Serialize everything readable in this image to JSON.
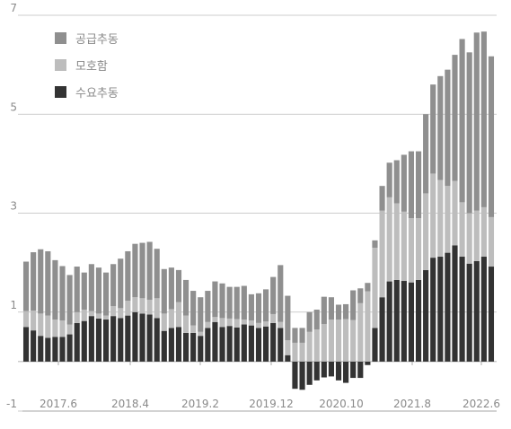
{
  "chart_data": {
    "type": "bar",
    "stacked": true,
    "title": "",
    "xlabel": "",
    "ylabel": "",
    "ylim": [
      -1,
      7
    ],
    "y_ticks": [
      "7",
      "5",
      "3",
      "1",
      "-1"
    ],
    "x_tick_labels": [
      "2017.6",
      "2018.4",
      "2019.2",
      "2019.12",
      "2020.10",
      "2021.8",
      "2022.6"
    ],
    "grid": "horizontal",
    "legend_position": "top-left",
    "series": [
      {
        "name": "수요추동",
        "color": "#333333",
        "values": [
          0.7,
          0.63,
          0.52,
          0.48,
          0.5,
          0.5,
          0.55,
          0.78,
          0.82,
          0.92,
          0.87,
          0.85,
          0.92,
          0.88,
          0.93,
          1.0,
          0.97,
          0.95,
          0.88,
          0.62,
          0.68,
          0.7,
          0.58,
          0.58,
          0.52,
          0.68,
          0.8,
          0.7,
          0.72,
          0.69,
          0.75,
          0.73,
          0.68,
          0.71,
          0.78,
          0.68,
          0.13,
          -0.55,
          -0.57,
          -0.47,
          -0.38,
          -0.32,
          -0.3,
          -0.38,
          -0.43,
          -0.33,
          -0.33,
          -0.07,
          0.68,
          1.3,
          1.62,
          1.65,
          1.63,
          1.6,
          1.65,
          1.85,
          2.1,
          2.12,
          2.2,
          2.35,
          2.12,
          1.98,
          2.03,
          2.12,
          1.92
        ]
      },
      {
        "name": "모호함",
        "color": "#bdbdbd",
        "values": [
          0.32,
          0.4,
          0.45,
          0.45,
          0.35,
          0.33,
          0.2,
          0.22,
          0.23,
          0.1,
          0.1,
          0.08,
          0.2,
          0.2,
          0.3,
          0.3,
          0.31,
          0.3,
          0.4,
          0.35,
          0.38,
          0.5,
          0.35,
          0.15,
          0.08,
          0.12,
          0.1,
          0.18,
          0.15,
          0.17,
          0.1,
          0.1,
          0.1,
          0.1,
          0.18,
          0.12,
          0.3,
          0.38,
          0.38,
          0.6,
          0.65,
          0.76,
          0.85,
          0.85,
          0.86,
          0.84,
          1.18,
          1.42,
          1.62,
          1.75,
          1.7,
          1.55,
          1.4,
          1.3,
          1.25,
          1.55,
          1.7,
          1.55,
          1.35,
          1.3,
          1.1,
          1.02,
          1.02,
          1.0,
          1.0
        ]
      },
      {
        "name": "공급추동",
        "color": "#8f8f8f",
        "values": [
          1.0,
          1.18,
          1.3,
          1.3,
          1.2,
          1.1,
          1.0,
          0.92,
          0.75,
          0.95,
          0.93,
          0.87,
          0.85,
          1.0,
          1.0,
          1.08,
          1.12,
          1.17,
          1.0,
          0.9,
          0.84,
          0.65,
          0.72,
          0.7,
          0.7,
          0.63,
          0.72,
          0.7,
          0.64,
          0.65,
          0.68,
          0.53,
          0.6,
          0.65,
          0.75,
          1.15,
          0.9,
          0.3,
          0.3,
          0.4,
          0.4,
          0.55,
          0.45,
          0.3,
          0.3,
          0.6,
          0.3,
          0.17,
          0.15,
          0.5,
          0.7,
          0.87,
          1.15,
          1.35,
          1.35,
          1.6,
          1.8,
          2.1,
          2.35,
          2.55,
          3.3,
          3.25,
          3.6,
          3.55,
          3.25
        ]
      }
    ]
  }
}
